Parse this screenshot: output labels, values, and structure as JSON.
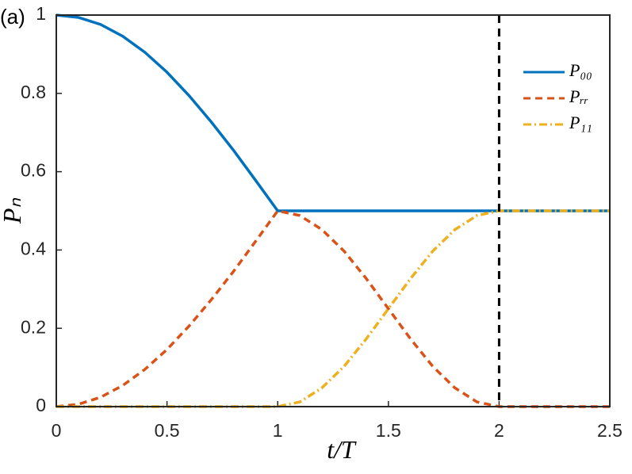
{
  "chart_data": {
    "type": "line",
    "panel_label": "(a)",
    "xlabel": "t/T",
    "ylabel": "Pₙ",
    "x": [
      0,
      0.1,
      0.2,
      0.3,
      0.4,
      0.5,
      0.6,
      0.7,
      0.8,
      0.9,
      1.0,
      1.1,
      1.2,
      1.3,
      1.4,
      1.5,
      1.6,
      1.7,
      1.8,
      1.9,
      2.0,
      2.1,
      2.2,
      2.3,
      2.4,
      2.5
    ],
    "series": [
      {
        "name": "P₀₀",
        "color": "#0072bd",
        "dash": "solid",
        "values": [
          1,
          0.994,
          0.976,
          0.946,
          0.905,
          0.854,
          0.794,
          0.727,
          0.655,
          0.578,
          0.5,
          0.5,
          0.5,
          0.5,
          0.5,
          0.5,
          0.5,
          0.5,
          0.5,
          0.5,
          0.5,
          0.5,
          0.5,
          0.5,
          0.5,
          0.5
        ]
      },
      {
        "name": "Pᵣᵣ",
        "color": "#d95319",
        "dash": "dashed",
        "values": [
          0,
          0.006,
          0.024,
          0.054,
          0.095,
          0.146,
          0.206,
          0.273,
          0.345,
          0.422,
          0.5,
          0.488,
          0.452,
          0.397,
          0.327,
          0.25,
          0.173,
          0.103,
          0.048,
          0.012,
          0,
          0,
          0,
          0,
          0,
          0
        ]
      },
      {
        "name": "P₁₁",
        "color": "#edb120",
        "dash": "dashdot",
        "values": [
          0,
          0,
          0,
          0,
          0,
          0,
          0,
          0,
          0,
          0,
          0,
          0.012,
          0.048,
          0.103,
          0.173,
          0.25,
          0.327,
          0.397,
          0.452,
          0.488,
          0.5,
          0.5,
          0.5,
          0.5,
          0.5,
          0.5
        ]
      }
    ],
    "reference_x": 2,
    "xlim": [
      0,
      2.5
    ],
    "xticks": [
      0,
      0.5,
      1,
      1.5,
      2,
      2.5
    ],
    "ylim": [
      0,
      1
    ],
    "yticks": [
      0,
      0.2,
      0.4,
      0.6,
      0.8,
      1
    ],
    "legend": "upper right"
  }
}
